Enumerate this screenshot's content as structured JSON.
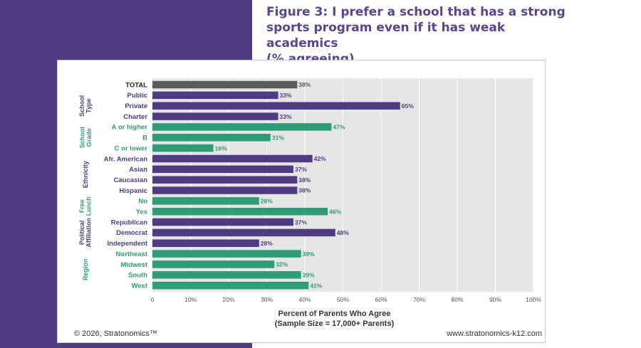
{
  "figure_title": {
    "lines": [
      "Figure 3: I prefer a school that has a strong",
      "sports program even if it has weak academics",
      "(% agreeing)"
    ]
  },
  "footer": {
    "copyright": "© 2026, Stratonomics™",
    "website": "www.stratonomics-k12.com"
  },
  "colors": {
    "band": "#4f3b82",
    "title": "#5a4490",
    "purple": "#4f3b82",
    "green": "#2f9b79",
    "total": "#5b5b5b",
    "plot_bg": "#e6e6e6"
  },
  "chart_data": {
    "type": "bar",
    "orientation": "horizontal",
    "title": "I prefer a school that has a strong sports program even if it has weak academics (% agreeing)",
    "xlabel": "Percent of Parents Who Agree",
    "xlabel_sub": "(Sample Size = 17,000+ Parents)",
    "xlim": [
      0,
      100
    ],
    "xticks": [
      0,
      10,
      20,
      30,
      40,
      50,
      60,
      70,
      80,
      90,
      100
    ],
    "xtick_labels": [
      "0",
      "10%",
      "20%",
      "30%",
      "40%",
      "50%",
      "60%",
      "70%",
      "80%",
      "90%",
      "100%"
    ],
    "grid": true,
    "categories": [
      "TOTAL",
      "Public",
      "Private",
      "Charter",
      "A or higher",
      "B",
      "C or lower",
      "Afr. American",
      "Asian",
      "Caucasian",
      "Hispanic",
      "No",
      "Yes",
      "Republican",
      "Democrat",
      "Independent",
      "Northeast",
      "Midwest",
      "South",
      "West"
    ],
    "values": [
      38,
      33,
      65,
      33,
      47,
      31,
      16,
      42,
      37,
      38,
      38,
      28,
      46,
      37,
      48,
      28,
      39,
      32,
      39,
      41
    ],
    "value_labels": [
      "38%",
      "33%",
      "65%",
      "33%",
      "47%",
      "31%",
      "16%",
      "42%",
      "37%",
      "38%",
      "38%",
      "28%",
      "46%",
      "37%",
      "48%",
      "28%",
      "39%",
      "32%",
      "39%",
      "41%"
    ],
    "bar_color_keys": [
      "total",
      "purple",
      "purple",
      "purple",
      "green",
      "green",
      "green",
      "purple",
      "purple",
      "purple",
      "purple",
      "green",
      "green",
      "purple",
      "purple",
      "purple",
      "green",
      "green",
      "green",
      "green"
    ],
    "groups": [
      {
        "lines": [
          "School",
          "Type"
        ],
        "start": 1,
        "end": 3,
        "color_key": "purple"
      },
      {
        "lines": [
          "School",
          "Grade"
        ],
        "start": 4,
        "end": 6,
        "color_key": "green"
      },
      {
        "lines": [
          "Ethnicity"
        ],
        "start": 7,
        "end": 10,
        "color_key": "purple"
      },
      {
        "lines": [
          "Free",
          "Lunch"
        ],
        "start": 11,
        "end": 12,
        "color_key": "green"
      },
      {
        "lines": [
          "Political",
          "Affiliation"
        ],
        "start": 13,
        "end": 15,
        "color_key": "purple"
      },
      {
        "lines": [
          "Region"
        ],
        "start": 16,
        "end": 19,
        "color_key": "green"
      }
    ]
  }
}
